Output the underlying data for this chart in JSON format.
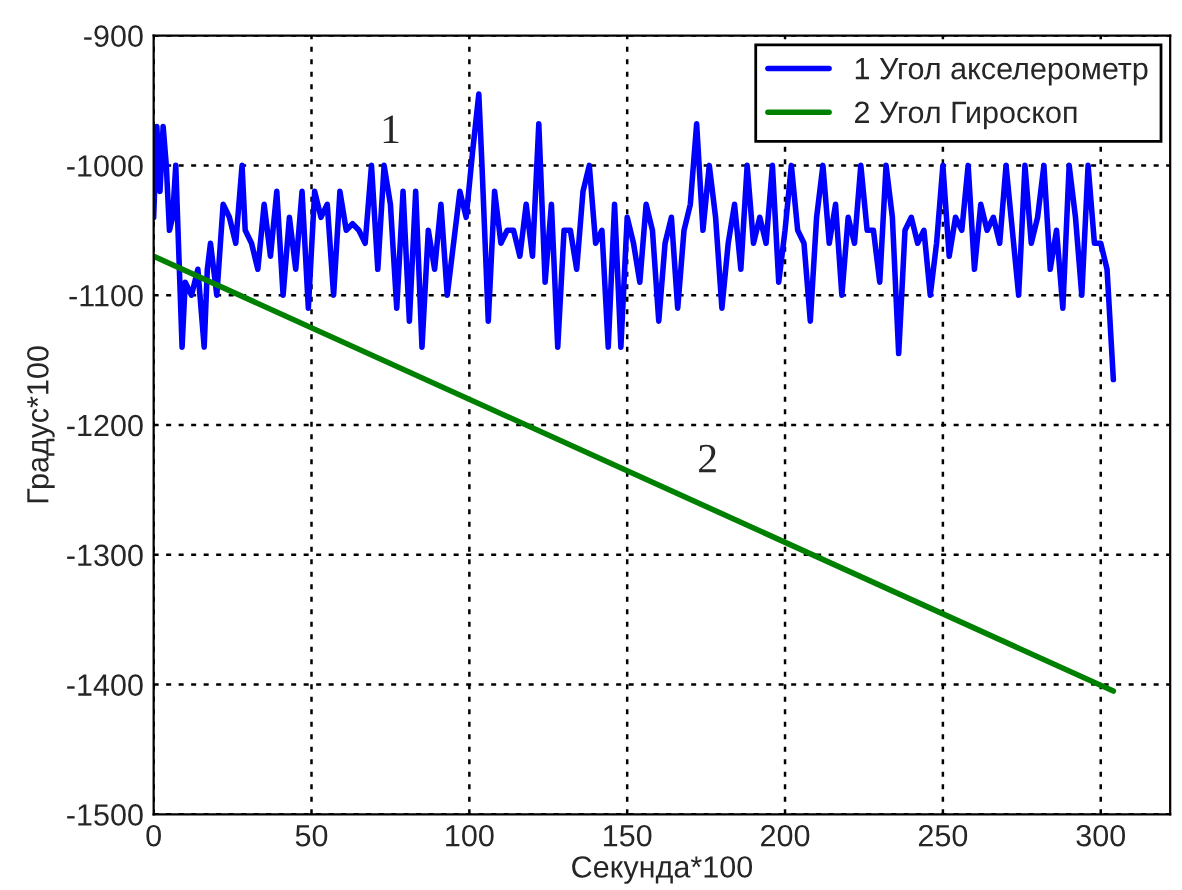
{
  "chart_data": {
    "type": "line",
    "xlabel": "Секунда*100",
    "ylabel": "Градус*100",
    "xlim": [
      0,
      322
    ],
    "ylim": [
      -1500,
      -900
    ],
    "xticks": [
      0,
      50,
      100,
      150,
      200,
      250,
      300
    ],
    "yticks": [
      -900,
      -1000,
      -1100,
      -1200,
      -1300,
      -1400,
      -1500
    ],
    "grid": true,
    "legend": "top right",
    "line_style": "solid",
    "marker": "none",
    "annotations": [
      "1",
      "2"
    ],
    "series": [
      {
        "name": "1 Угол акселерометр",
        "color": "#0000ff",
        "x": [
          0,
          1,
          2,
          3,
          4,
          5,
          6,
          7,
          8,
          9,
          10,
          12,
          14,
          16,
          17,
          18,
          20,
          22,
          24,
          26,
          28,
          29,
          31,
          33,
          35,
          37,
          39,
          41,
          43,
          45,
          47,
          49,
          51,
          53,
          55,
          57,
          59,
          61,
          63,
          65,
          67,
          69,
          71,
          73,
          75,
          77,
          79,
          81,
          83,
          85,
          87,
          89,
          91,
          93,
          95,
          97,
          99,
          101,
          103,
          104,
          106,
          108,
          110,
          112,
          114,
          116,
          118,
          120,
          122,
          124,
          126,
          128,
          130,
          132,
          134,
          136,
          138,
          140,
          142,
          144,
          146,
          148,
          150,
          152,
          154,
          156,
          158,
          160,
          162,
          164,
          166,
          168,
          170,
          172,
          174,
          176,
          178,
          180,
          182,
          184,
          186,
          188,
          190,
          192,
          194,
          196,
          198,
          200,
          202,
          204,
          206,
          208,
          210,
          212,
          214,
          216,
          218,
          220,
          222,
          224,
          226,
          228,
          230,
          232,
          234,
          236,
          238,
          240,
          242,
          244,
          246,
          248,
          250,
          252,
          254,
          256,
          258,
          260,
          262,
          264,
          266,
          268,
          270,
          272,
          274,
          276,
          278,
          280,
          282,
          284,
          286,
          288,
          290,
          292,
          294,
          296,
          298,
          300,
          302,
          304
        ],
        "values": [
          -1040,
          -970,
          -1020,
          -970,
          -1000,
          -1050,
          -1040,
          -1000,
          -1070,
          -1140,
          -1090,
          -1100,
          -1080,
          -1140,
          -1080,
          -1060,
          -1100,
          -1030,
          -1040,
          -1060,
          -1000,
          -1050,
          -1060,
          -1080,
          -1030,
          -1070,
          -1020,
          -1100,
          -1040,
          -1080,
          -1020,
          -1110,
          -1020,
          -1040,
          -1030,
          -1100,
          -1020,
          -1050,
          -1045,
          -1050,
          -1060,
          -1000,
          -1080,
          -1000,
          -1030,
          -1110,
          -1020,
          -1120,
          -1020,
          -1140,
          -1050,
          -1080,
          -1030,
          -1100,
          -1060,
          -1020,
          -1040,
          -990,
          -945,
          -1000,
          -1120,
          -1020,
          -1060,
          -1050,
          -1050,
          -1070,
          -1030,
          -1070,
          -968,
          -1090,
          -1030,
          -1140,
          -1050,
          -1050,
          -1080,
          -1020,
          -1000,
          -1060,
          -1050,
          -1140,
          -1030,
          -1140,
          -1040,
          -1060,
          -1090,
          -1030,
          -1050,
          -1120,
          -1060,
          -1040,
          -1110,
          -1050,
          -1030,
          -968,
          -1050,
          -1000,
          -1040,
          -1110,
          -1060,
          -1030,
          -1080,
          -1000,
          -1060,
          -1040,
          -1060,
          -1000,
          -1090,
          -1050,
          -1000,
          -1050,
          -1060,
          -1120,
          -1040,
          -1000,
          -1060,
          -1030,
          -1100,
          -1040,
          -1060,
          -1000,
          -1050,
          -1050,
          -1090,
          -1000,
          -1040,
          -1145,
          -1050,
          -1040,
          -1060,
          -1050,
          -1100,
          -1060,
          -1000,
          -1070,
          -1040,
          -1050,
          -1000,
          -1080,
          -1030,
          -1050,
          -1040,
          -1060,
          -1000,
          -1050,
          -1100,
          -1000,
          -1060,
          -1040,
          -1000,
          -1080,
          -1050,
          -1110,
          -1000,
          -1040,
          -1100,
          -1000,
          -1060,
          -1060,
          -1080,
          -1165
        ]
      },
      {
        "name": "2 Угол Гироскоп",
        "color": "#008000",
        "x": [
          0,
          304
        ],
        "values": [
          -1070,
          -1405
        ]
      }
    ]
  }
}
